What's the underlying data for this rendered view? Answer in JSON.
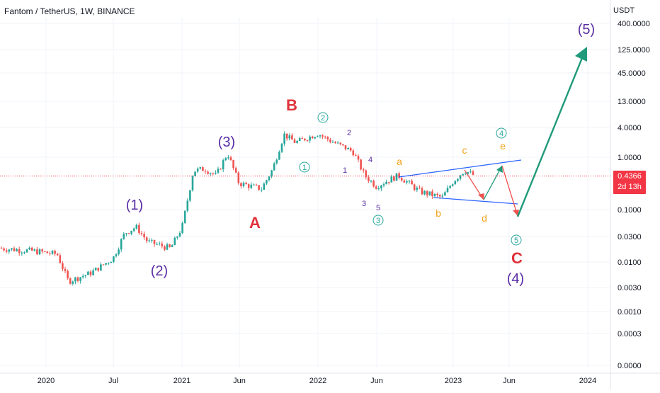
{
  "header": {
    "symbol_title": "Fantom / TetherUS, 1W, BINANCE",
    "quote_unit": "USDT"
  },
  "price_tag": {
    "price": "0.4366",
    "countdown": "2d 13h"
  },
  "colors": {
    "up": "#26a69a",
    "down": "#ef5350",
    "abc": "#e0323b",
    "primary": "#5a2ea6",
    "minor": "#26a69a",
    "triangle": "#f2a31b",
    "channel": "#2962ff",
    "forecast_up": "#1f9a7a",
    "forecast_down": "#ef5350"
  },
  "chart_data": {
    "type": "candlestick",
    "y_scale": "log",
    "y_ticks": [
      "400.0000",
      "125.0000",
      "45.0000",
      "13.0000",
      "4.0000",
      "1.0000",
      "0.1000",
      "0.0300",
      "0.0100",
      "0.0030",
      "0.0010",
      "0.0003",
      "0.0000"
    ],
    "x_ticks": [
      "2020",
      "Jul",
      "2021",
      "Jun",
      "2022",
      "Jun",
      "2023",
      "Jun",
      "2024"
    ],
    "current_price": 0.4366,
    "price_path": [
      [
        "2019-09",
        0.018
      ],
      [
        "2019-12",
        0.016
      ],
      [
        "2020-02",
        0.014
      ],
      [
        "2020-03",
        0.004
      ],
      [
        "2020-05",
        0.006
      ],
      [
        "2020-07",
        0.012
      ],
      [
        "2020-08",
        0.035
      ],
      [
        "2020-09",
        0.046
      ],
      [
        "2020-10",
        0.024
      ],
      [
        "2020-12",
        0.018
      ],
      [
        "2021-01",
        0.045
      ],
      [
        "2021-02",
        0.55
      ],
      [
        "2021-03",
        0.6
      ],
      [
        "2021-04",
        0.45
      ],
      [
        "2021-05",
        1.2
      ],
      [
        "2021-06",
        0.32
      ],
      [
        "2021-08",
        0.25
      ],
      [
        "2021-09",
        0.6
      ],
      [
        "2021-10",
        2.9
      ],
      [
        "2021-11",
        2.0
      ],
      [
        "2022-01",
        3.0
      ],
      [
        "2022-02",
        2.2
      ],
      [
        "2022-04",
        1.3
      ],
      [
        "2022-05",
        0.45
      ],
      [
        "2022-06",
        0.28
      ],
      [
        "2022-08",
        0.45
      ],
      [
        "2022-10",
        0.22
      ],
      [
        "2022-12",
        0.17
      ],
      [
        "2023-01",
        0.35
      ],
      [
        "2023-02",
        0.56
      ],
      [
        "2023-03",
        0.4366
      ]
    ],
    "wave_labels": [
      {
        "text": "(1)",
        "group": "primary"
      },
      {
        "text": "(2)",
        "group": "primary"
      },
      {
        "text": "(3)",
        "group": "primary"
      },
      {
        "text": "(4)",
        "group": "primary"
      },
      {
        "text": "(5)",
        "group": "primary"
      },
      {
        "text": "A",
        "group": "abc"
      },
      {
        "text": "B",
        "group": "abc"
      },
      {
        "text": "C",
        "group": "abc"
      },
      {
        "text": "1",
        "group": "minor_circled"
      },
      {
        "text": "2",
        "group": "minor_circled"
      },
      {
        "text": "3",
        "group": "minor_circled"
      },
      {
        "text": "4",
        "group": "minor_circled"
      },
      {
        "text": "5",
        "group": "minor_circled"
      },
      {
        "text": "1",
        "group": "small"
      },
      {
        "text": "2",
        "group": "small"
      },
      {
        "text": "3",
        "group": "small"
      },
      {
        "text": "4",
        "group": "small"
      },
      {
        "text": "5",
        "group": "small"
      },
      {
        "text": "a",
        "group": "triangle"
      },
      {
        "text": "b",
        "group": "triangle"
      },
      {
        "text": "c",
        "group": "triangle"
      },
      {
        "text": "d",
        "group": "triangle"
      },
      {
        "text": "e",
        "group": "triangle"
      }
    ]
  }
}
